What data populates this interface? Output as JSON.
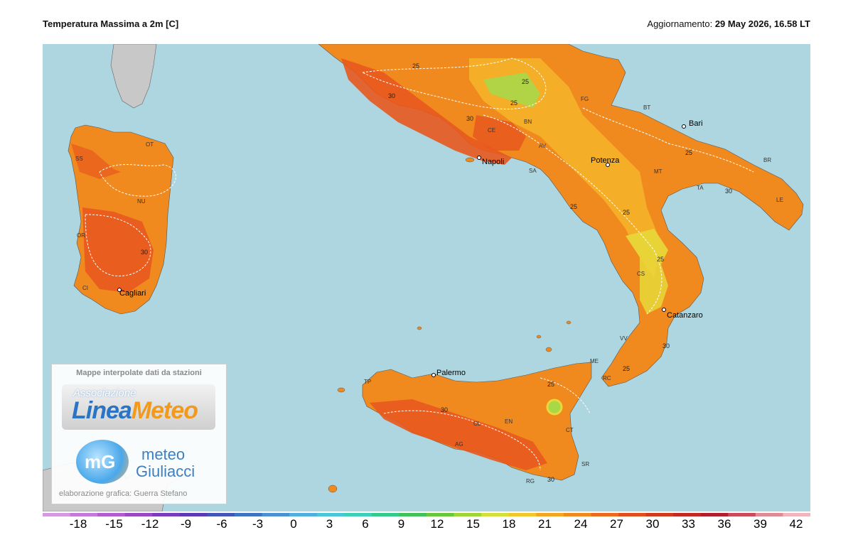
{
  "header": {
    "title": "Temperatura Massima a 2m [C]",
    "update_label": "Aggiornamento:",
    "update_value": "29 May 2026, 16.58 LT"
  },
  "cities": [
    {
      "name": "Bari"
    },
    {
      "name": "Napoli"
    },
    {
      "name": "Potenza"
    },
    {
      "name": "Cagliari"
    },
    {
      "name": "Catanzaro"
    },
    {
      "name": "Palermo"
    }
  ],
  "province_codes": [
    "FG",
    "BT",
    "BN",
    "CE",
    "AV",
    "SA",
    "MT",
    "TA",
    "BR",
    "LE",
    "SS",
    "OT",
    "NU",
    "OR",
    "CI",
    "CS",
    "VV",
    "RC",
    "ME",
    "TP",
    "CT",
    "EN",
    "CL",
    "AG",
    "SR",
    "RG"
  ],
  "isotherm_labels": [
    "25",
    "30"
  ],
  "logo": {
    "caption": "Mappe interpolate dati da stazioni",
    "assoc": "Associazione",
    "brand_part1": "Linea",
    "brand_part2": "Meteo",
    "mg_initials": "mG",
    "mg_word1": "meteo",
    "mg_word2": "Giuliacci",
    "credit": "elaborazione grafica: Guerra Stefano"
  },
  "colors": {
    "sea": "#add6e0",
    "land_foreign": "#c8c8c8",
    "temp_30_33": "#e8581e",
    "temp_27_30": "#f08a1e",
    "temp_24_27": "#f4b42a",
    "temp_21_24": "#e8d83a",
    "temp_18_21": "#a8d848"
  },
  "colorbar": {
    "ticks": [
      "-18",
      "-15",
      "-12",
      "-9",
      "-6",
      "-3",
      "0",
      "3",
      "6",
      "9",
      "12",
      "15",
      "18",
      "21",
      "24",
      "27",
      "30",
      "33",
      "36",
      "39",
      "42"
    ],
    "colors": [
      "#d39ae0",
      "#c47ad8",
      "#b25ccf",
      "#9a48c4",
      "#7a3cbf",
      "#5a3ab8",
      "#4056b8",
      "#3f73c4",
      "#4a92d4",
      "#4fb0df",
      "#4cc6d6",
      "#3ecfb8",
      "#36c98d",
      "#3fc25a",
      "#66c83a",
      "#9ed63a",
      "#d3df3a",
      "#f0c82a",
      "#f4a622",
      "#f08a1e",
      "#ec6a1e",
      "#e04e1c",
      "#d23a20",
      "#c22a24",
      "#b01f2a",
      "#c94a5a",
      "#e08a96",
      "#f0b6c0"
    ]
  }
}
